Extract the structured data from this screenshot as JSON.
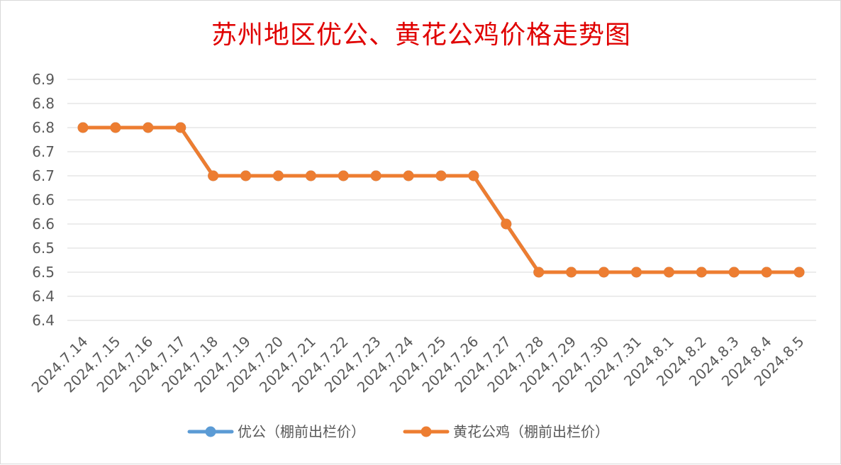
{
  "chart_data": {
    "type": "line",
    "title": "苏州地区优公、黄花公鸡价格走势图",
    "xlabel": "",
    "ylabel": "",
    "ylim": [
      6.4,
      6.9
    ],
    "y_ticks": [
      "6.9",
      "6.8",
      "6.8",
      "6.7",
      "6.7",
      "6.6",
      "6.6",
      "6.5",
      "6.5",
      "6.4",
      "6.4"
    ],
    "grid": true,
    "legend_position": "bottom",
    "categories": [
      "2024.7.14",
      "2024.7.15",
      "2024.7.16",
      "2024.7.17",
      "2024.7.18",
      "2024.7.19",
      "2024.7.20",
      "2024.7.21",
      "2024.7.22",
      "2024.7.23",
      "2024.7.24",
      "2024.7.25",
      "2024.7.26",
      "2024.7.27",
      "2024.7.28",
      "2024.7.29",
      "2024.7.30",
      "2024.7.31",
      "2024.8.1",
      "2024.8.2",
      "2024.8.3",
      "2024.8.4",
      "2024.8.5"
    ],
    "series": [
      {
        "name": "优公（棚前出栏价）",
        "color": "#5b9bd5",
        "values": [
          6.8,
          6.8,
          6.8,
          6.8,
          6.7,
          6.7,
          6.7,
          6.7,
          6.7,
          6.7,
          6.7,
          6.7,
          6.7,
          6.6,
          6.5,
          6.5,
          6.5,
          6.5,
          6.5,
          6.5,
          6.5,
          6.5,
          6.5
        ]
      },
      {
        "name": "黄花公鸡（棚前出栏价）",
        "color": "#ed7d31",
        "values": [
          6.8,
          6.8,
          6.8,
          6.8,
          6.7,
          6.7,
          6.7,
          6.7,
          6.7,
          6.7,
          6.7,
          6.7,
          6.7,
          6.6,
          6.5,
          6.5,
          6.5,
          6.5,
          6.5,
          6.5,
          6.5,
          6.5,
          6.5
        ]
      }
    ]
  }
}
